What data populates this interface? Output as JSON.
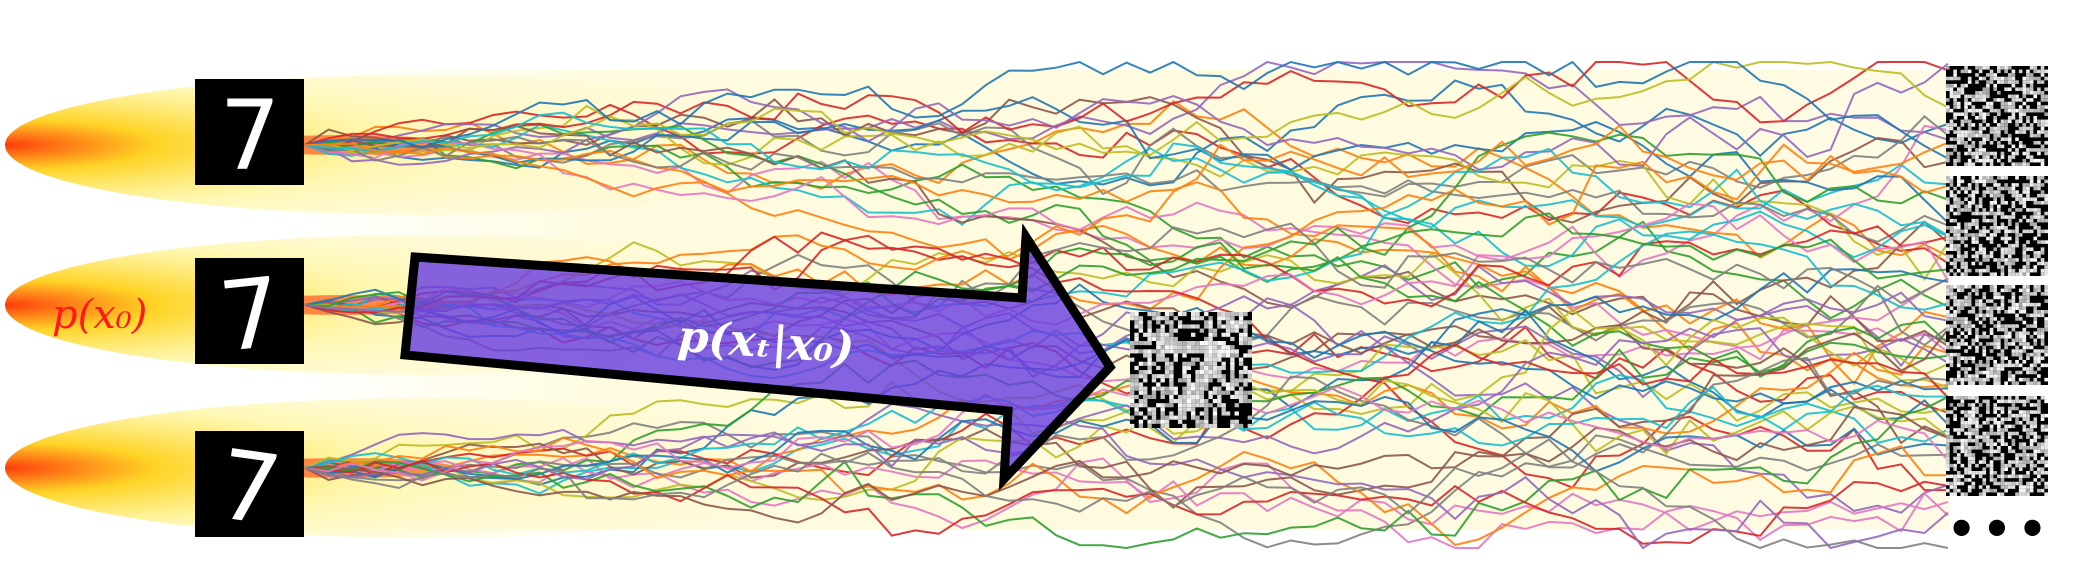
{
  "diagram": {
    "prior_label": "p(x₀)",
    "arrow_label": "p(xₜ|x₀)",
    "more_indicator": "•••",
    "source_digit": "7",
    "source_image_count": 3,
    "noise_image_count": 4,
    "colors": {
      "prior_label": "#ff1a1a",
      "arrow_fill": "#6a3fe0",
      "arrow_stroke": "#000000",
      "arrow_label": "#ffffff",
      "density_core": "#ff3000",
      "density_mid": "#ffe600",
      "density_outer": "#fff8c8",
      "path_palette": [
        "#1f77b4",
        "#ff7f0e",
        "#2ca02c",
        "#d62728",
        "#9467bd",
        "#8c564b",
        "#e377c2",
        "#7f7f7f",
        "#bcbd22",
        "#17becf"
      ]
    }
  }
}
